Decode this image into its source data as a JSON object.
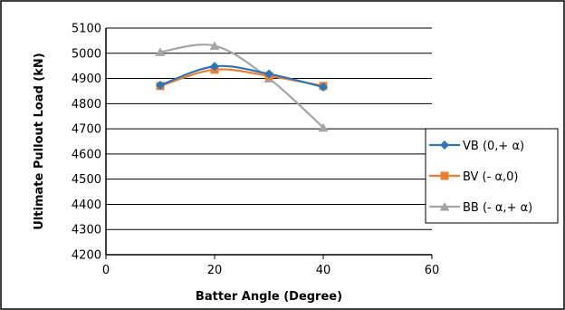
{
  "chart_data": {
    "type": "line",
    "title": "",
    "xlabel": "Batter Angle (Degree)",
    "ylabel": "Ultimate Pullout Load (kN)",
    "xlim": [
      0,
      60
    ],
    "ylim": [
      4200,
      5100
    ],
    "xticks": [
      0,
      20,
      40,
      60
    ],
    "yticks": [
      4200,
      4300,
      4400,
      4500,
      4600,
      4700,
      4800,
      4900,
      5000,
      5100
    ],
    "grid": "horizontal",
    "legend_position": "right",
    "series": [
      {
        "name": "VB (0,+ α)",
        "color": "#2E75B6",
        "marker": "diamond",
        "x": [
          10,
          20,
          30,
          40
        ],
        "y": [
          4873,
          4948,
          4918,
          4866
        ]
      },
      {
        "name": "BV (- α,0)",
        "color": "#ED7D31",
        "marker": "square",
        "x": [
          10,
          20,
          30,
          40
        ],
        "y": [
          4870,
          4935,
          4910,
          4870
        ]
      },
      {
        "name": "BB (- α,+ α)",
        "color": "#A5A5A5",
        "marker": "triangle",
        "x": [
          10,
          20,
          30,
          40
        ],
        "y": [
          5005,
          5030,
          4900,
          4705
        ]
      }
    ]
  }
}
